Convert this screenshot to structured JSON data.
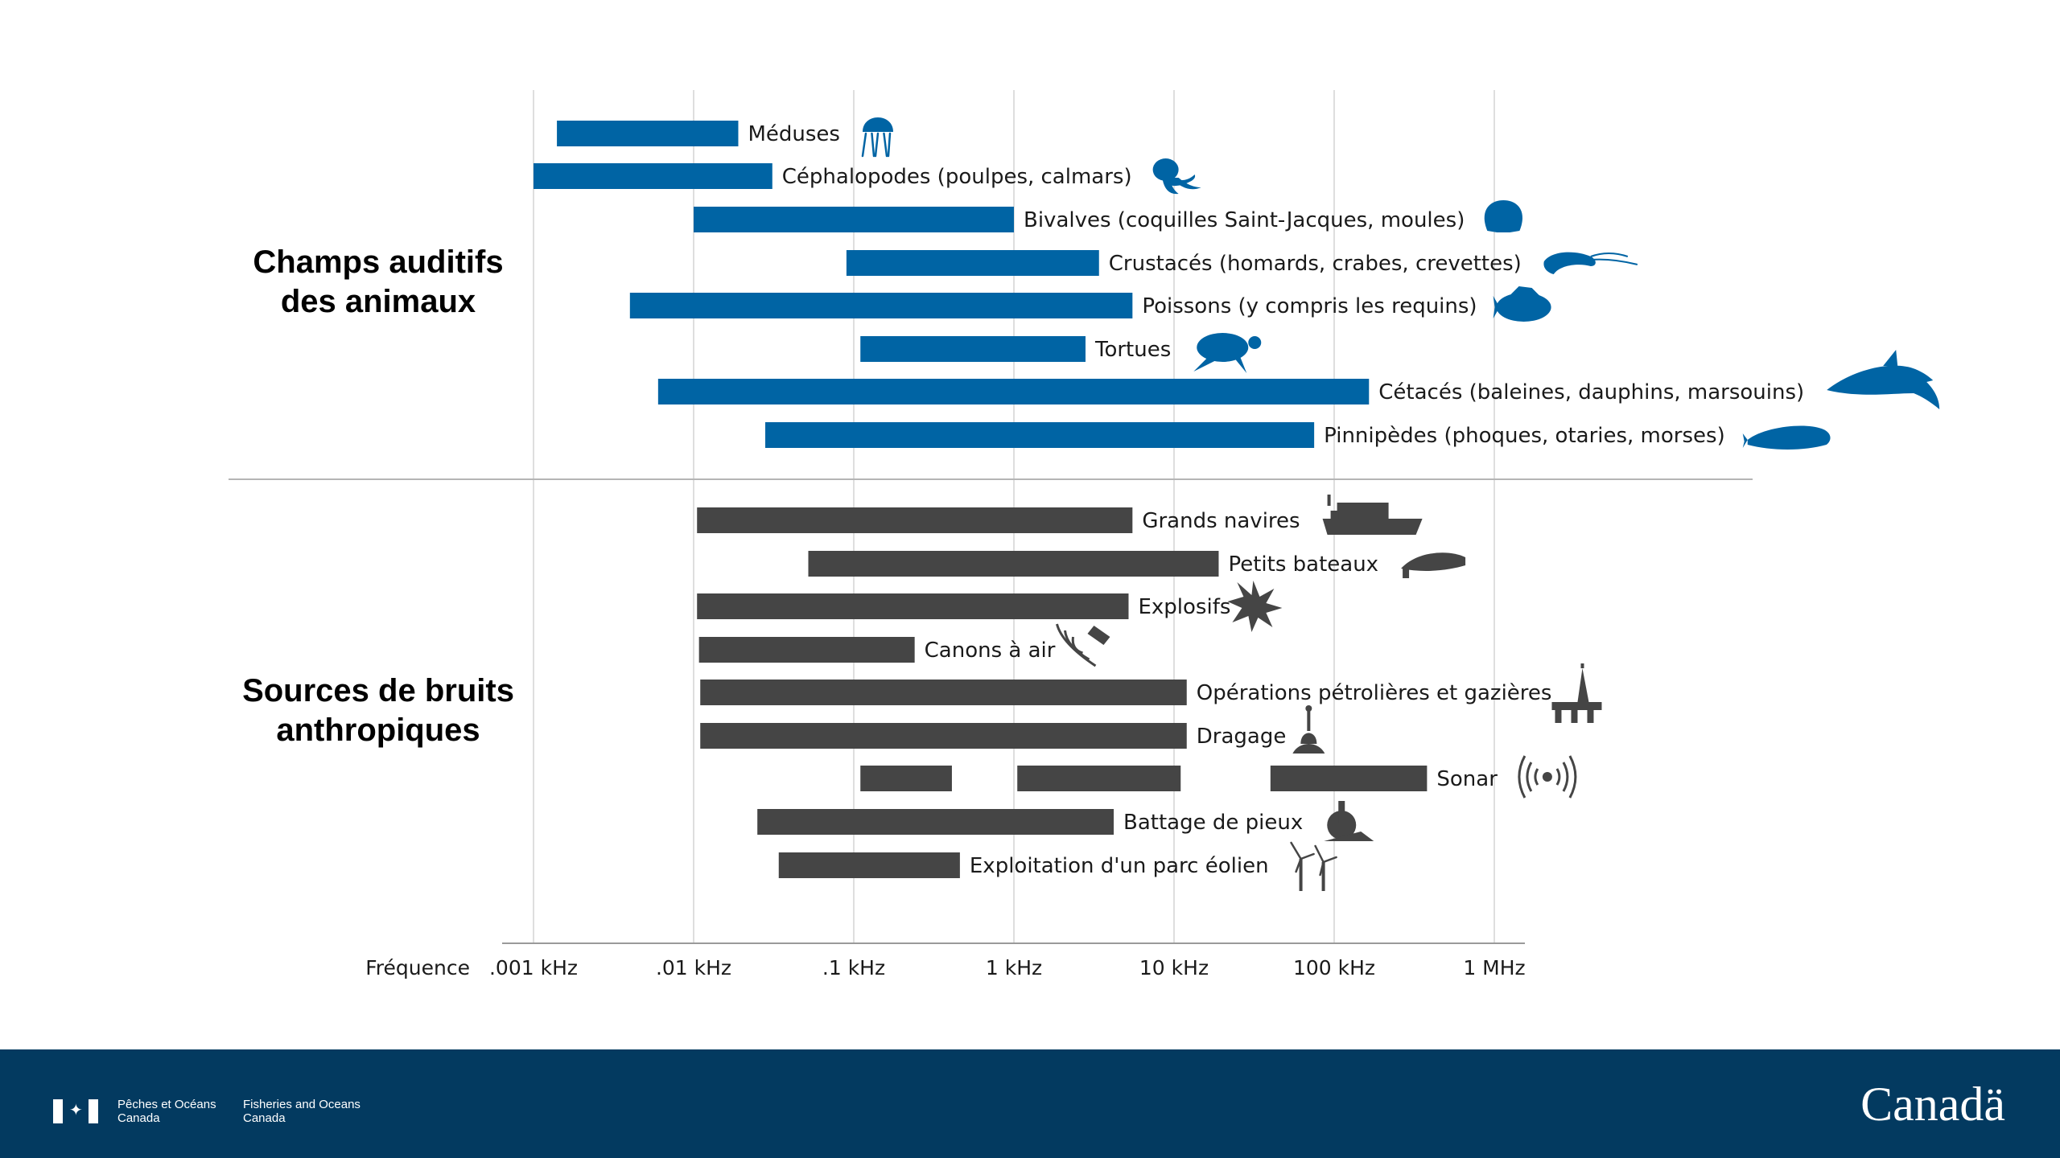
{
  "chart_data": {
    "type": "range-bar",
    "x_scale": "log",
    "x_unit": "kHz",
    "xlim": [
      0.001,
      1000
    ],
    "xlabel": "Fréquence",
    "xticks": [
      {
        "value": 0.001,
        "label": ".001 kHz"
      },
      {
        "value": 0.01,
        "label": ".01 kHz"
      },
      {
        "value": 0.1,
        "label": ".1 kHz"
      },
      {
        "value": 1,
        "label": "1 kHz"
      },
      {
        "value": 10,
        "label": "10 kHz"
      },
      {
        "value": 100,
        "label": "100 kHz"
      },
      {
        "value": 1000,
        "label": "1 MHz"
      }
    ],
    "grid": true,
    "groups": [
      {
        "title_lines": [
          "Champs auditifs",
          "des animaux"
        ],
        "color": "#0064a4",
        "items": [
          {
            "label": "Méduses",
            "icon": "jellyfish-icon",
            "ranges": [
              [
                0.0014,
                0.019
              ]
            ]
          },
          {
            "label": "Céphalopodes (poulpes, calmars)",
            "icon": "octopus-icon",
            "ranges": [
              [
                0.001,
                0.031
              ]
            ]
          },
          {
            "label": "Bivalves (coquilles Saint-Jacques, moules)",
            "icon": "scallop-icon",
            "ranges": [
              [
                0.01,
                1
              ]
            ]
          },
          {
            "label": "Crustacés (homards, crabes, crevettes)",
            "icon": "shrimp-icon",
            "ranges": [
              [
                0.09,
                3.4
              ]
            ]
          },
          {
            "label": "Poissons (y compris les requins)",
            "icon": "fish-icon",
            "ranges": [
              [
                0.004,
                5.5
              ]
            ]
          },
          {
            "label": "Tortues",
            "icon": "turtle-icon",
            "ranges": [
              [
                0.11,
                2.8
              ]
            ]
          },
          {
            "label": "Cétacés (baleines, dauphins, marsouins)",
            "icon": "dolphin-icon",
            "ranges": [
              [
                0.006,
                165
              ]
            ]
          },
          {
            "label": "Pinnipèdes (phoques, otaries, morses)",
            "icon": "seal-icon",
            "ranges": [
              [
                0.028,
                75
              ]
            ]
          }
        ]
      },
      {
        "title_lines": [
          "Sources de bruits",
          "anthropiques"
        ],
        "color": "#454545",
        "items": [
          {
            "label": "Grands navires",
            "icon": "ship-icon",
            "ranges": [
              [
                0.0105,
                5.5
              ]
            ]
          },
          {
            "label": "Petits bateaux",
            "icon": "boat-icon",
            "ranges": [
              [
                0.052,
                19
              ]
            ]
          },
          {
            "label": "Explosifs",
            "icon": "explosion-icon",
            "ranges": [
              [
                0.0105,
                5.2
              ]
            ]
          },
          {
            "label": "Canons à air",
            "icon": "airgun-icon",
            "ranges": [
              [
                0.0108,
                0.24
              ]
            ]
          },
          {
            "label": "Opérations pétrolières et gazières",
            "icon": "oil-rig-icon",
            "ranges": [
              [
                0.011,
                12
              ]
            ]
          },
          {
            "label": "Dragage",
            "icon": "dredge-icon",
            "ranges": [
              [
                0.011,
                12
              ]
            ]
          },
          {
            "label": "Sonar",
            "icon": "sonar-icon",
            "ranges": [
              [
                0.11,
                0.41
              ],
              [
                1.05,
                11
              ],
              [
                40,
                380
              ]
            ]
          },
          {
            "label": "Battage de pieux",
            "icon": "pile-driving-icon",
            "ranges": [
              [
                0.025,
                4.2
              ]
            ]
          },
          {
            "label": "Exploitation d'un parc éolien",
            "icon": "wind-turbine-icon",
            "ranges": [
              [
                0.034,
                0.46
              ]
            ]
          }
        ]
      }
    ]
  },
  "footer": {
    "dept_fr_line1": "Pêches et Océans",
    "dept_fr_line2": "Canada",
    "dept_en_line1": "Fisheries and Oceans",
    "dept_en_line2": "Canada",
    "wordmark": "Canadä"
  }
}
